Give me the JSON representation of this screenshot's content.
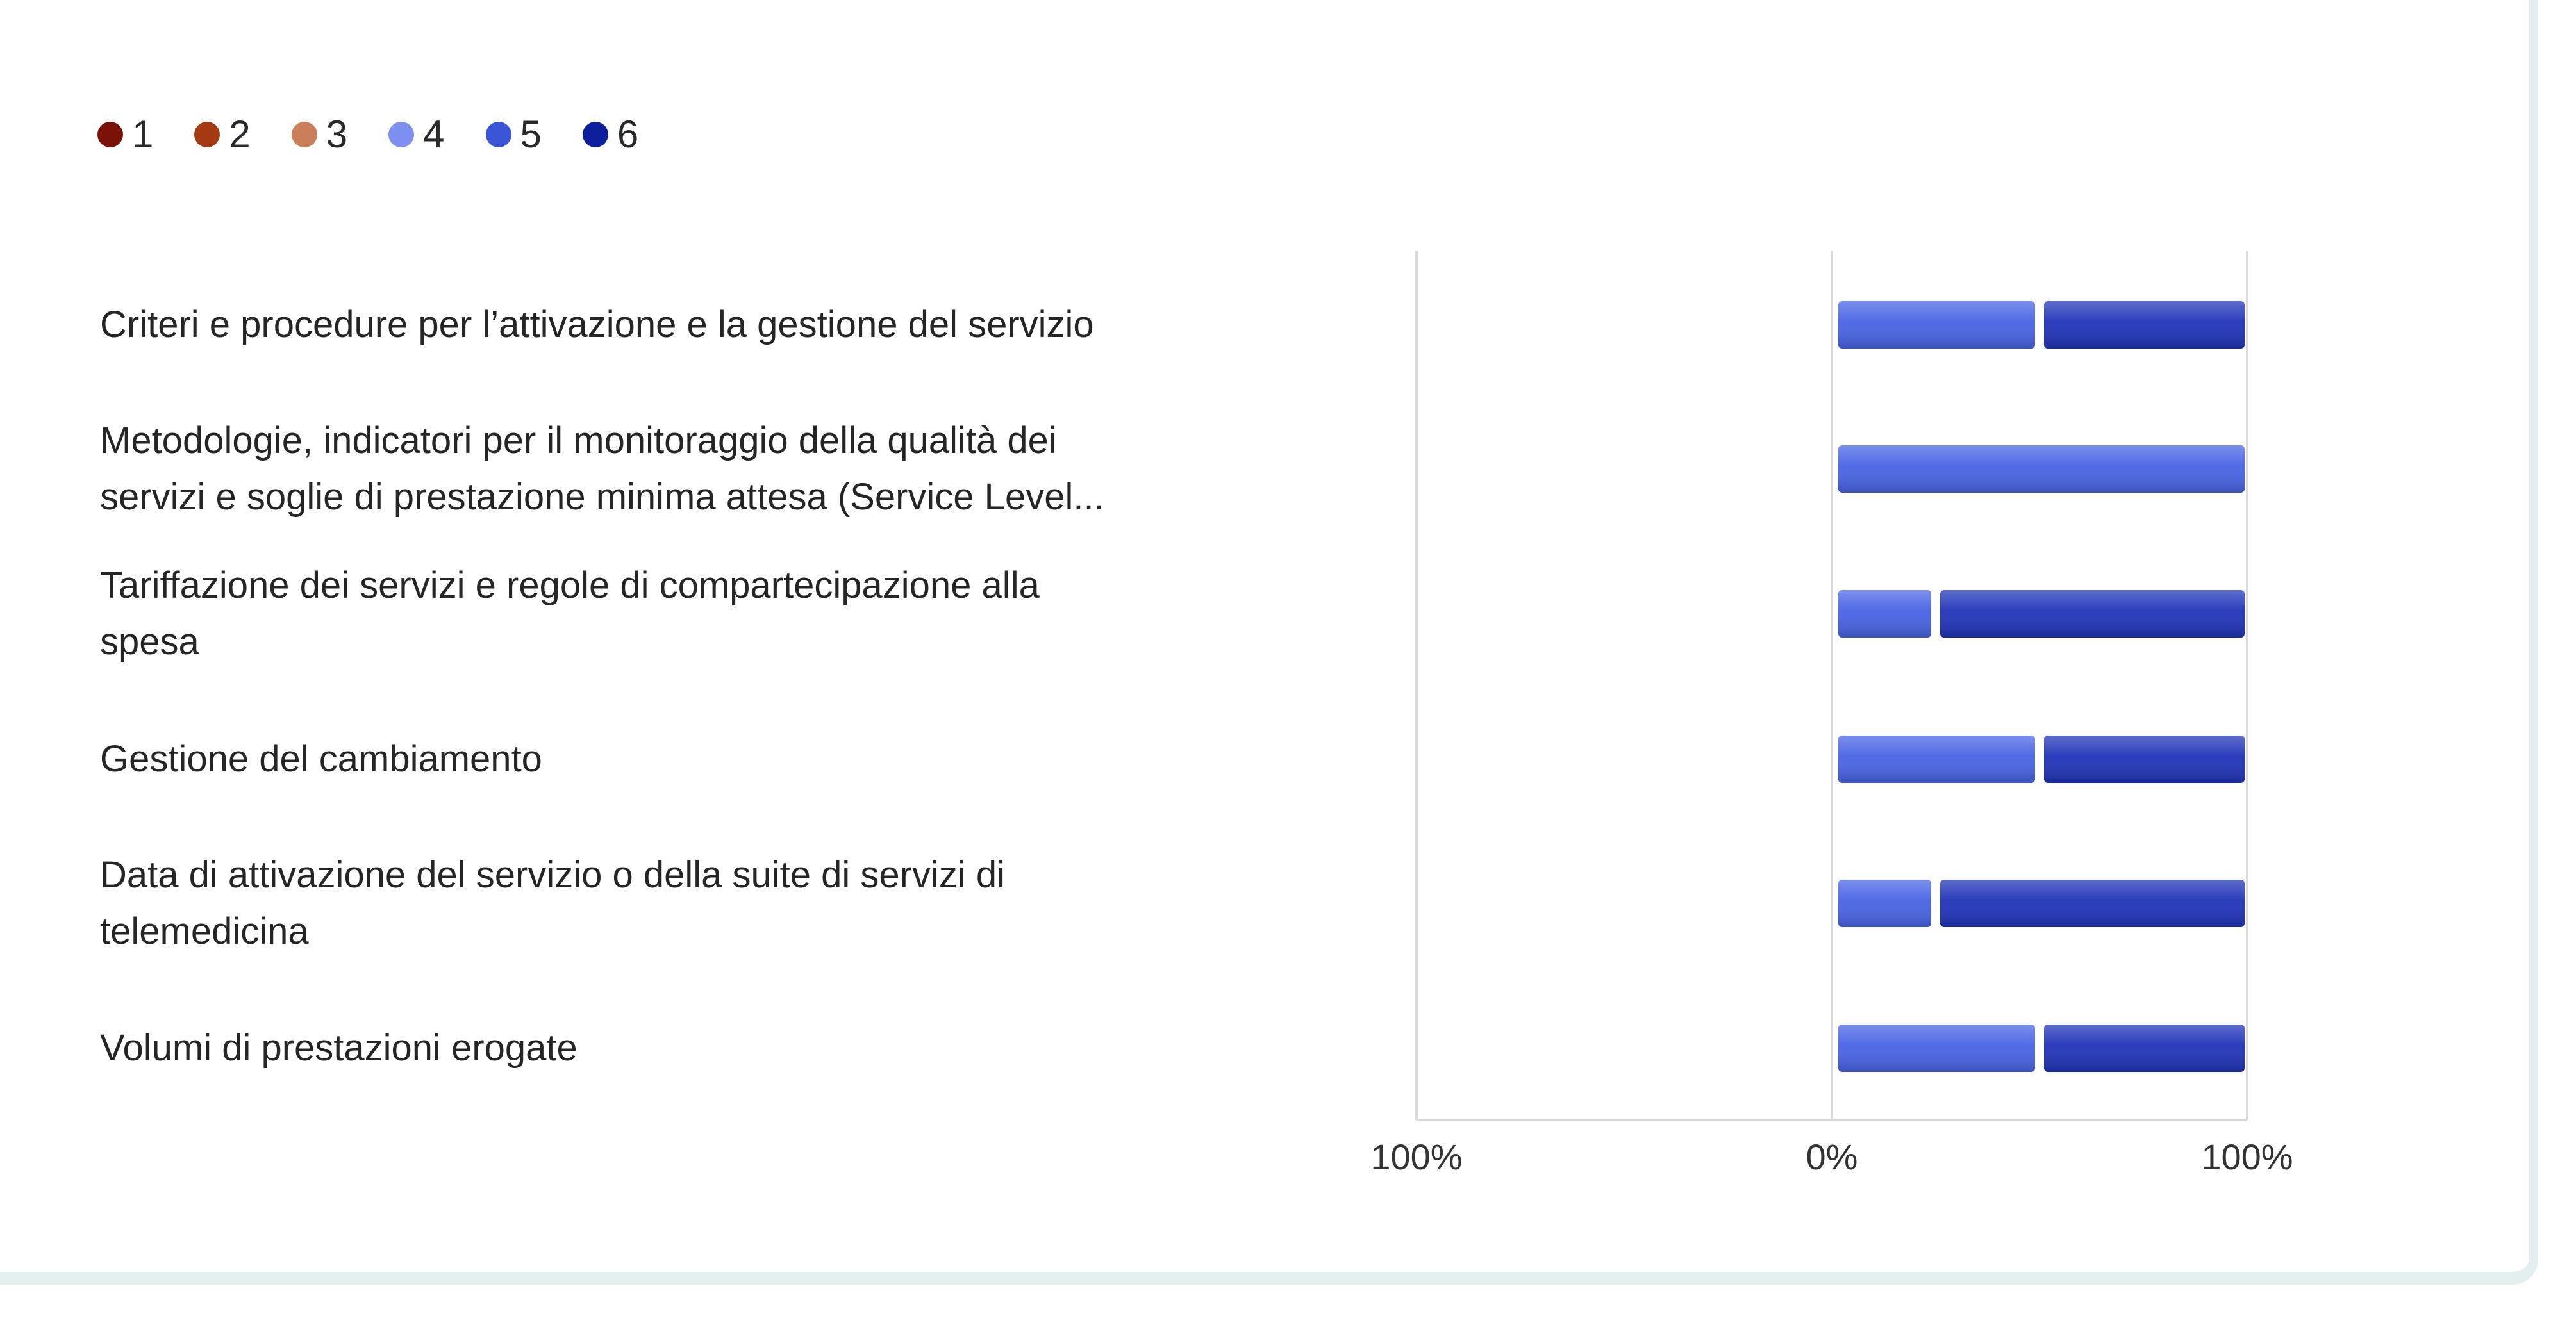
{
  "legend": [
    {
      "label": "1",
      "color": "#7a1208"
    },
    {
      "label": "2",
      "color": "#a63a12"
    },
    {
      "label": "3",
      "color": "#c9805a"
    },
    {
      "label": "4",
      "color": "#7d8ff0"
    },
    {
      "label": "5",
      "color": "#3a55d6"
    },
    {
      "label": "6",
      "color": "#0d1f9c"
    }
  ],
  "chart_data": {
    "type": "bar",
    "orientation": "horizontal",
    "stacked": true,
    "diverging": true,
    "categories": [
      "Criteri e procedure per l’attivazione e la gestione del servizio",
      "Metodologie, indicatori per il monitoraggio della qualità dei servizi e soglie di prestazione minima attesa (Service Level...",
      "Tariffazione dei servizi e regole di compartecipazione alla spesa",
      "Gestione del cambiamento",
      "Data di attivazione del servizio o della suite di servizi di telemedicina",
      "Volumi di prestazioni erogate"
    ],
    "series": [
      {
        "name": "1",
        "color": "#7a1208",
        "values": [
          0,
          0,
          0,
          0,
          0,
          0
        ]
      },
      {
        "name": "2",
        "color": "#a63a12",
        "values": [
          0,
          0,
          0,
          0,
          0,
          0
        ]
      },
      {
        "name": "3",
        "color": "#c9805a",
        "values": [
          0,
          0,
          0,
          0,
          0,
          0
        ]
      },
      {
        "name": "4",
        "color": "#7d8ff0",
        "values": [
          0,
          0,
          0,
          0,
          0,
          0
        ]
      },
      {
        "name": "5",
        "color": "#4763e4",
        "values": [
          50,
          100,
          25,
          50,
          25,
          50
        ]
      },
      {
        "name": "6",
        "color": "#1f33b8",
        "values": [
          50,
          0,
          75,
          50,
          75,
          50
        ]
      }
    ],
    "x_ticks": [
      "100%",
      "0%",
      "100%"
    ],
    "xlim": [
      -100,
      100
    ],
    "grid": true,
    "legend_position": "top-left"
  }
}
